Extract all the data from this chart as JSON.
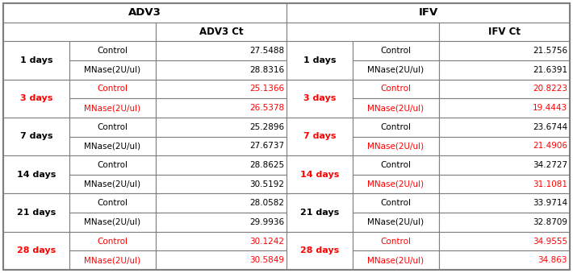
{
  "adv3_header": "ADV3",
  "ifv_header": "IFV",
  "adv3_ct_header": "ADV3 Ct",
  "ifv_ct_header": "IFV Ct",
  "days": [
    "1 days",
    "3 days",
    "7 days",
    "14 days",
    "21 days",
    "28 days"
  ],
  "days_color_adv3": [
    "#000000",
    "#ff0000",
    "#000000",
    "#000000",
    "#000000",
    "#ff0000"
  ],
  "days_color_ifv": [
    "#000000",
    "#ff0000",
    "#ff0000",
    "#ff0000",
    "#000000",
    "#ff0000"
  ],
  "adv3_data": [
    [
      "Control",
      "27.5488",
      "#000000",
      "#000000"
    ],
    [
      "MNase(2U/ul)",
      "28.8316",
      "#000000",
      "#000000"
    ],
    [
      "Control",
      "25.1366",
      "#ff0000",
      "#ff0000"
    ],
    [
      "MNase(2U/ul)",
      "26.5378",
      "#ff0000",
      "#ff0000"
    ],
    [
      "Control",
      "25.2896",
      "#000000",
      "#000000"
    ],
    [
      "MNase(2U/ul)",
      "27.6737",
      "#000000",
      "#000000"
    ],
    [
      "Control",
      "28.8625",
      "#000000",
      "#000000"
    ],
    [
      "MNase(2U/ul)",
      "30.5192",
      "#000000",
      "#000000"
    ],
    [
      "Control",
      "28.0582",
      "#000000",
      "#000000"
    ],
    [
      "MNase(2U/ul)",
      "29.9936",
      "#000000",
      "#000000"
    ],
    [
      "Control",
      "30.1242",
      "#ff0000",
      "#ff0000"
    ],
    [
      "MNase(2U/ul)",
      "30.5849",
      "#ff0000",
      "#ff0000"
    ]
  ],
  "ifv_data": [
    [
      "Control",
      "21.5756",
      "#000000",
      "#000000"
    ],
    [
      "MNase(2U/ul)",
      "21.6391",
      "#000000",
      "#000000"
    ],
    [
      "Control",
      "20.8223",
      "#ff0000",
      "#ff0000"
    ],
    [
      "MNase(2U/ul)",
      "19.4443",
      "#ff0000",
      "#ff0000"
    ],
    [
      "Control",
      "23.6744",
      "#000000",
      "#000000"
    ],
    [
      "MNase(2U/ul)",
      "21.4906",
      "#ff0000",
      "#ff0000"
    ],
    [
      "Control",
      "34.2727",
      "#000000",
      "#000000"
    ],
    [
      "MNase(2U/ul)",
      "31.1081",
      "#ff0000",
      "#ff0000"
    ],
    [
      "Control",
      "33.9714",
      "#000000",
      "#000000"
    ],
    [
      "MNase(2U/ul)",
      "32.8709",
      "#000000",
      "#000000"
    ],
    [
      "Control",
      "34.9555",
      "#ff0000",
      "#ff0000"
    ],
    [
      "MNase(2U/ul)",
      "34.863",
      "#ff0000",
      "#ff0000"
    ]
  ],
  "border_color": "#7f7f7f",
  "bg_color": "#ffffff",
  "fig_width": 7.1,
  "fig_height": 3.39,
  "dpi": 100
}
